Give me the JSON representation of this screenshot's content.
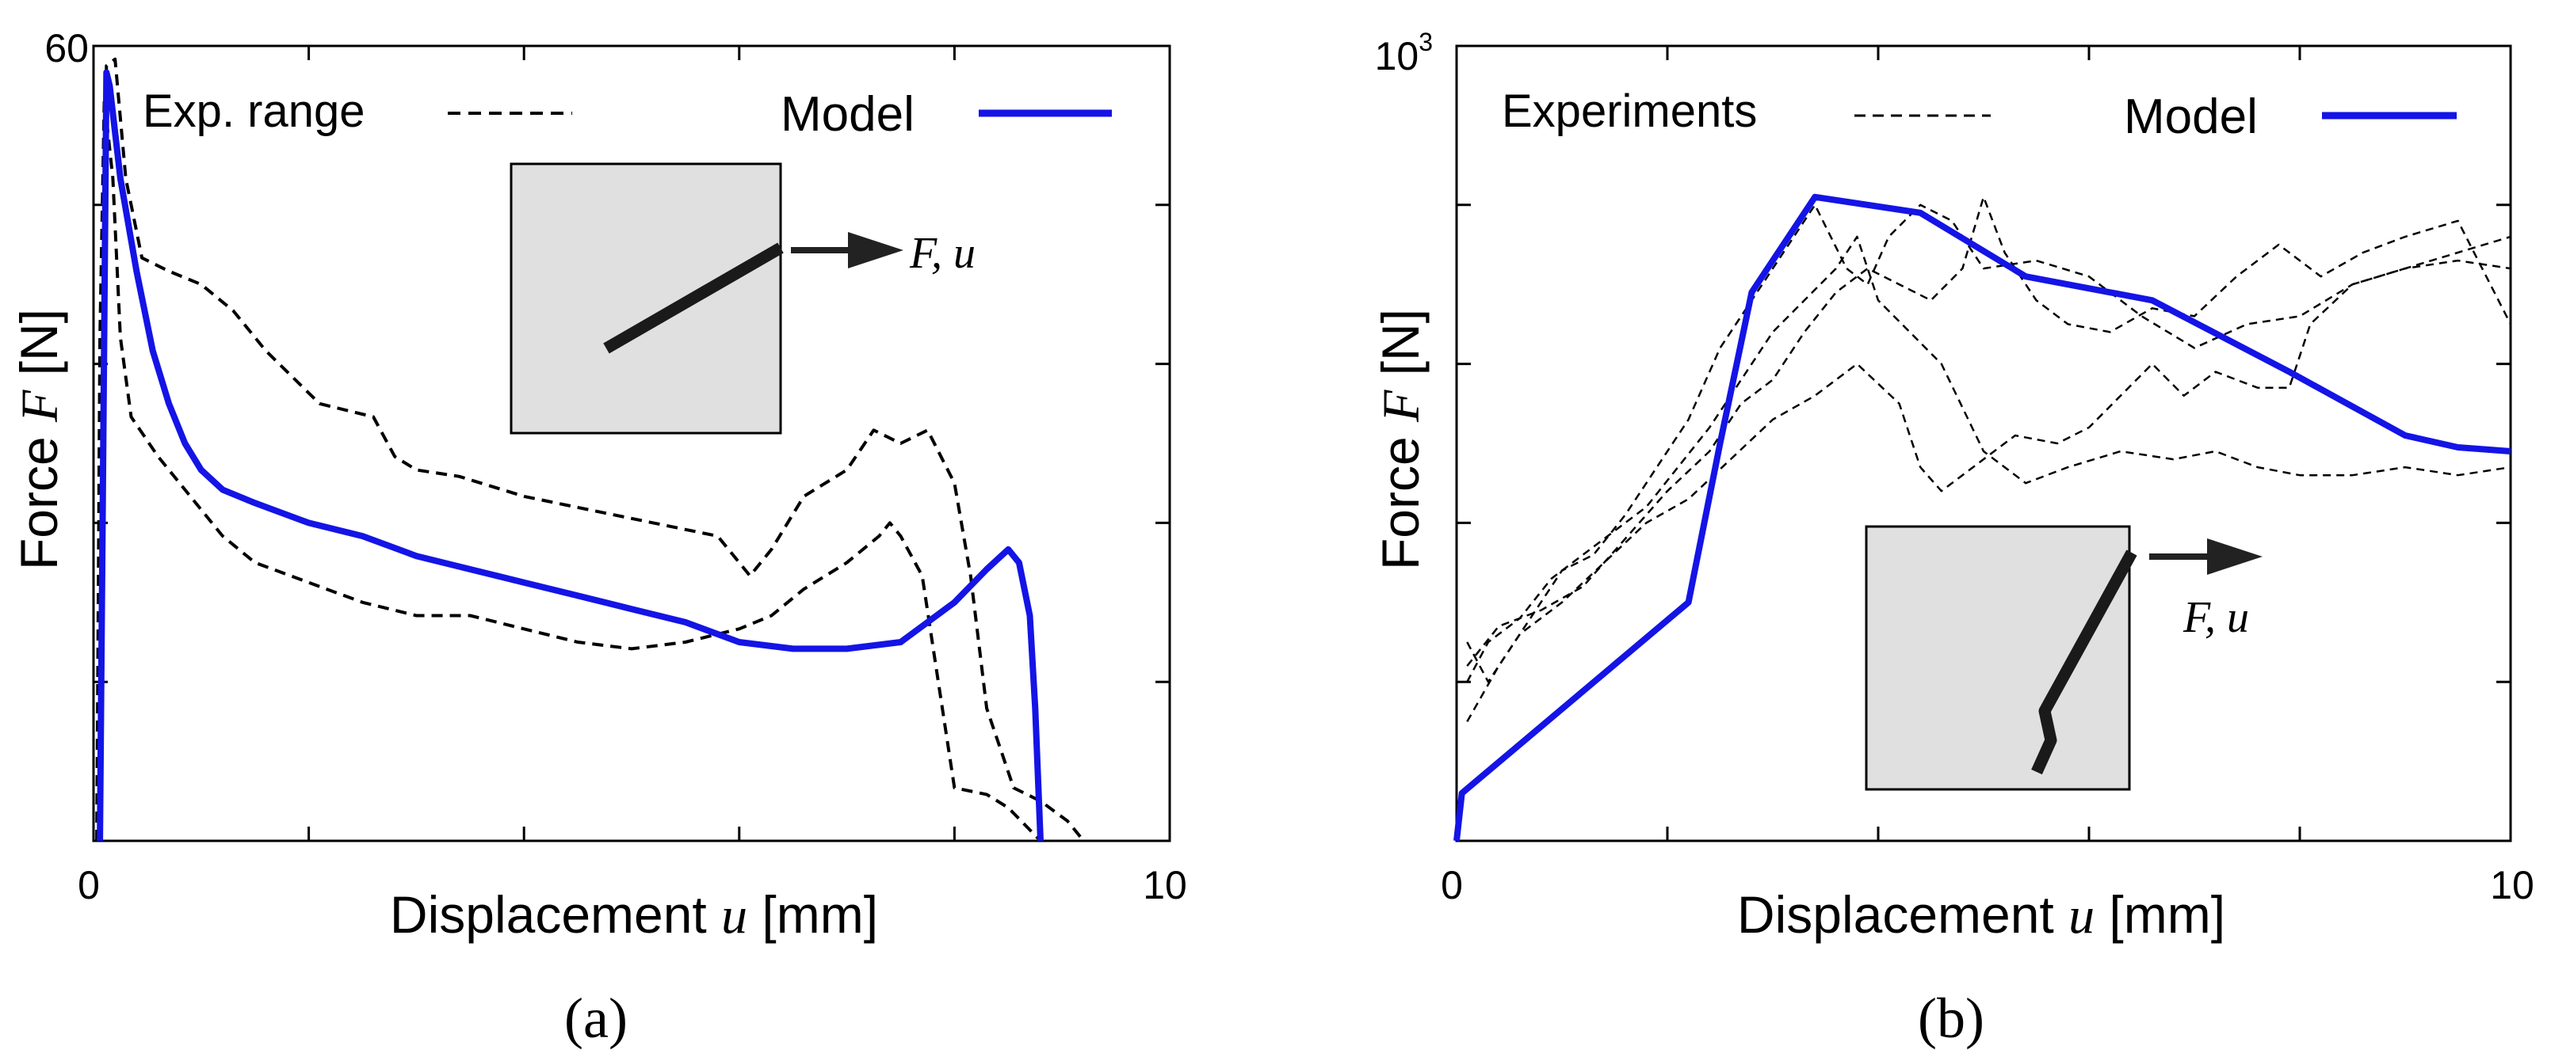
{
  "chart_data": [
    {
      "type": "line",
      "panel_label": "(a)",
      "title": "",
      "xlabel_prefix": "Displacement ",
      "xlabel_var": "u",
      "xlabel_suffix": " [mm]",
      "ylabel_prefix": "Force ",
      "ylabel_var": "F",
      "ylabel_suffix": " [N]",
      "xlim": [
        0,
        10
      ],
      "ylim": [
        0,
        60
      ],
      "xtick_labels": {
        "min": "0",
        "max": "10"
      },
      "ytick_labels": {
        "max": "60"
      },
      "x_minor_ticks": [
        2,
        4,
        6,
        8
      ],
      "y_minor_ticks": [
        12,
        24,
        36,
        48
      ],
      "legend": {
        "exp": "Exp. range",
        "model": "Model"
      },
      "inset_label": "F, u",
      "colors": {
        "model": "#1414e6",
        "experiment": "#000000"
      },
      "series": [
        {
          "name": "Exp. range upper",
          "style": "dashed",
          "points": [
            [
              0.05,
              0
            ],
            [
              0.08,
              35
            ],
            [
              0.12,
              58.5
            ],
            [
              0.2,
              59
            ],
            [
              0.3,
              50
            ],
            [
              0.45,
              44
            ],
            [
              0.7,
              43
            ],
            [
              1.0,
              42
            ],
            [
              1.3,
              40
            ],
            [
              1.6,
              37
            ],
            [
              2.1,
              33
            ],
            [
              2.6,
              32
            ],
            [
              2.8,
              29
            ],
            [
              3.0,
              28
            ],
            [
              3.4,
              27.5
            ],
            [
              4.0,
              26
            ],
            [
              4.6,
              25
            ],
            [
              5.2,
              24
            ],
            [
              5.8,
              23
            ],
            [
              6.1,
              20
            ],
            [
              6.3,
              22
            ],
            [
              6.6,
              26
            ],
            [
              7.0,
              28
            ],
            [
              7.25,
              31
            ],
            [
              7.5,
              30
            ],
            [
              7.75,
              31
            ],
            [
              8.0,
              27
            ],
            [
              8.15,
              20
            ],
            [
              8.3,
              10
            ],
            [
              8.55,
              4
            ],
            [
              8.8,
              3
            ],
            [
              9.05,
              1.5
            ],
            [
              9.2,
              0
            ]
          ]
        },
        {
          "name": "Exp. range lower",
          "style": "dashed",
          "points": [
            [
              0.03,
              0
            ],
            [
              0.06,
              38
            ],
            [
              0.1,
              56
            ],
            [
              0.18,
              50
            ],
            [
              0.25,
              38
            ],
            [
              0.35,
              32
            ],
            [
              0.6,
              29
            ],
            [
              0.9,
              26
            ],
            [
              1.2,
              23
            ],
            [
              1.5,
              21
            ],
            [
              2.0,
              19.5
            ],
            [
              2.5,
              18
            ],
            [
              3.0,
              17
            ],
            [
              3.5,
              17
            ],
            [
              4.0,
              16
            ],
            [
              4.5,
              15
            ],
            [
              5.0,
              14.5
            ],
            [
              5.5,
              15
            ],
            [
              6.0,
              16
            ],
            [
              6.3,
              17
            ],
            [
              6.6,
              19
            ],
            [
              7.0,
              21
            ],
            [
              7.3,
              23
            ],
            [
              7.4,
              24
            ],
            [
              7.5,
              23
            ],
            [
              7.7,
              20
            ],
            [
              7.85,
              12
            ],
            [
              8.0,
              4
            ],
            [
              8.3,
              3.5
            ],
            [
              8.5,
              2.5
            ],
            [
              8.8,
              0
            ]
          ]
        },
        {
          "name": "Model",
          "style": "solid",
          "points": [
            [
              0.06,
              0
            ],
            [
              0.08,
              20
            ],
            [
              0.12,
              58
            ],
            [
              0.15,
              57
            ],
            [
              0.25,
              50
            ],
            [
              0.4,
              43
            ],
            [
              0.55,
              37
            ],
            [
              0.7,
              33
            ],
            [
              0.85,
              30
            ],
            [
              1.0,
              28
            ],
            [
              1.2,
              26.5
            ],
            [
              1.5,
              25.5
            ],
            [
              2.0,
              24
            ],
            [
              2.5,
              23
            ],
            [
              3.0,
              21.5
            ],
            [
              3.5,
              20.5
            ],
            [
              4.0,
              19.5
            ],
            [
              4.5,
              18.5
            ],
            [
              5.0,
              17.5
            ],
            [
              5.5,
              16.5
            ],
            [
              6.0,
              15
            ],
            [
              6.5,
              14.5
            ],
            [
              7.0,
              14.5
            ],
            [
              7.5,
              15
            ],
            [
              8.0,
              18
            ],
            [
              8.3,
              20.5
            ],
            [
              8.5,
              22
            ],
            [
              8.6,
              21
            ],
            [
              8.7,
              17
            ],
            [
              8.75,
              10
            ],
            [
              8.8,
              0
            ]
          ]
        }
      ]
    },
    {
      "type": "line",
      "panel_label": "(b)",
      "title": "",
      "xlabel_prefix": "Displacement ",
      "xlabel_var": "u",
      "xlabel_suffix": " [mm]",
      "ylabel_prefix": "Force ",
      "ylabel_var": "F",
      "ylabel_suffix": " [N]",
      "xlim": [
        0,
        10
      ],
      "ylim": [
        0,
        1000
      ],
      "xtick_labels": {
        "min": "0",
        "max": "10"
      },
      "ytick_labels": {
        "base": "10",
        "exponent": "3"
      },
      "x_minor_ticks": [
        2,
        4,
        6,
        8
      ],
      "y_minor_ticks": [
        200,
        400,
        600,
        800
      ],
      "legend": {
        "exp": "Experiments",
        "model": "Model"
      },
      "inset_label": "F, u",
      "colors": {
        "model": "#1414e6",
        "experiment": "#000000"
      },
      "series": [
        {
          "name": "Experiment 1",
          "style": "dashed",
          "points": [
            [
              0.1,
              200
            ],
            [
              0.3,
              250
            ],
            [
              0.6,
              280
            ],
            [
              0.9,
              330
            ],
            [
              1.2,
              360
            ],
            [
              1.5,
              390
            ],
            [
              1.8,
              420
            ],
            [
              2.1,
              470
            ],
            [
              2.4,
              520
            ],
            [
              2.7,
              580
            ],
            [
              3.0,
              640
            ],
            [
              3.3,
              680
            ],
            [
              3.6,
              720
            ],
            [
              3.8,
              760
            ],
            [
              4.0,
              680
            ],
            [
              4.3,
              640
            ],
            [
              4.6,
              600
            ],
            [
              5.0,
              490
            ],
            [
              5.4,
              450
            ],
            [
              5.8,
              470
            ],
            [
              6.3,
              490
            ],
            [
              6.8,
              480
            ],
            [
              7.2,
              490
            ],
            [
              7.6,
              470
            ],
            [
              8.0,
              460
            ],
            [
              8.5,
              460
            ],
            [
              9.0,
              470
            ],
            [
              9.5,
              460
            ],
            [
              10.0,
              470
            ]
          ]
        },
        {
          "name": "Experiment 2",
          "style": "dashed",
          "points": [
            [
              0.1,
              220
            ],
            [
              0.4,
              270
            ],
            [
              0.8,
              290
            ],
            [
              1.2,
              320
            ],
            [
              1.6,
              380
            ],
            [
              2.0,
              440
            ],
            [
              2.4,
              490
            ],
            [
              2.7,
              550
            ],
            [
              3.0,
              580
            ],
            [
              3.3,
              640
            ],
            [
              3.6,
              690
            ],
            [
              3.9,
              720
            ],
            [
              4.2,
              700
            ],
            [
              4.5,
              680
            ],
            [
              4.8,
              720
            ],
            [
              5.0,
              810
            ],
            [
              5.2,
              740
            ],
            [
              5.5,
              680
            ],
            [
              5.8,
              650
            ],
            [
              6.2,
              640
            ],
            [
              6.6,
              670
            ],
            [
              7.0,
              660
            ],
            [
              7.4,
              710
            ],
            [
              7.8,
              750
            ],
            [
              8.2,
              710
            ],
            [
              8.6,
              740
            ],
            [
              9.0,
              760
            ],
            [
              9.5,
              780
            ],
            [
              10.0,
              650
            ]
          ]
        },
        {
          "name": "Experiment 3",
          "style": "dashed",
          "points": [
            [
              0.1,
              250
            ],
            [
              0.3,
              200
            ],
            [
              0.6,
              260
            ],
            [
              1.0,
              300
            ],
            [
              1.4,
              350
            ],
            [
              1.8,
              400
            ],
            [
              2.2,
              430
            ],
            [
              2.6,
              480
            ],
            [
              3.0,
              530
            ],
            [
              3.4,
              560
            ],
            [
              3.8,
              600
            ],
            [
              4.2,
              550
            ],
            [
              4.4,
              470
            ],
            [
              4.6,
              440
            ],
            [
              4.9,
              470
            ],
            [
              5.3,
              510
            ],
            [
              5.7,
              500
            ],
            [
              6.0,
              520
            ],
            [
              6.3,
              560
            ],
            [
              6.6,
              600
            ],
            [
              6.9,
              560
            ],
            [
              7.2,
              590
            ],
            [
              7.6,
              570
            ],
            [
              7.9,
              570
            ],
            [
              8.1,
              650
            ],
            [
              8.5,
              700
            ],
            [
              9.0,
              720
            ],
            [
              9.5,
              740
            ],
            [
              10.0,
              760
            ]
          ]
        },
        {
          "name": "Experiment 4",
          "style": "dashed",
          "points": [
            [
              0.1,
              150
            ],
            [
              0.4,
              220
            ],
            [
              0.7,
              280
            ],
            [
              1.0,
              340
            ],
            [
              1.3,
              360
            ],
            [
              1.6,
              410
            ],
            [
              1.9,
              470
            ],
            [
              2.2,
              530
            ],
            [
              2.5,
              620
            ],
            [
              2.8,
              680
            ],
            [
              3.1,
              740
            ],
            [
              3.4,
              800
            ],
            [
              3.7,
              720
            ],
            [
              3.9,
              700
            ],
            [
              4.1,
              760
            ],
            [
              4.4,
              800
            ],
            [
              4.7,
              780
            ],
            [
              5.0,
              720
            ],
            [
              5.5,
              730
            ],
            [
              6.0,
              710
            ],
            [
              6.5,
              660
            ],
            [
              7.0,
              620
            ],
            [
              7.5,
              650
            ],
            [
              8.0,
              660
            ],
            [
              8.5,
              700
            ],
            [
              9.0,
              720
            ],
            [
              9.5,
              730
            ],
            [
              10.0,
              720
            ]
          ]
        },
        {
          "name": "Model",
          "style": "solid",
          "points": [
            [
              0.0,
              0
            ],
            [
              0.05,
              60
            ],
            [
              2.2,
              300
            ],
            [
              2.5,
              500
            ],
            [
              2.8,
              690
            ],
            [
              3.4,
              810
            ],
            [
              4.4,
              790
            ],
            [
              5.4,
              710
            ],
            [
              6.6,
              680
            ],
            [
              7.9,
              590
            ],
            [
              9.0,
              510
            ],
            [
              9.5,
              495
            ],
            [
              10.0,
              490
            ]
          ]
        }
      ]
    }
  ]
}
